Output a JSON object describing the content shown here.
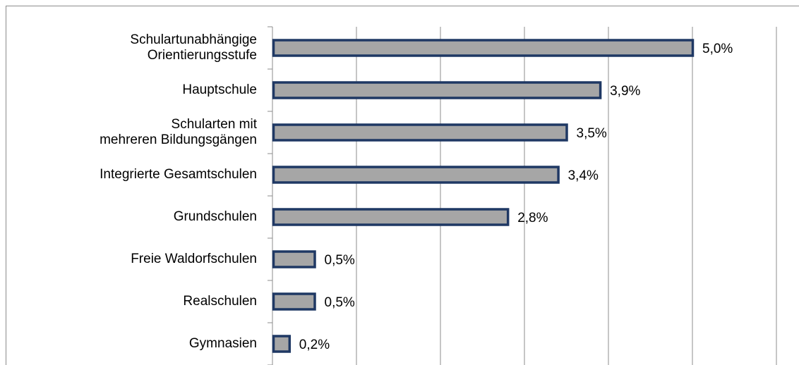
{
  "chart_data": {
    "type": "bar",
    "orientation": "horizontal",
    "categories": [
      "Schulartunabhängige\nOrientierungsstufe",
      "Hauptschule",
      "Schularten mit\nmehreren Bildungsgängen",
      "Integrierte Gesamtschulen",
      "Grundschulen",
      "Freie Waldorfschulen",
      "Realschulen",
      "Gymnasien"
    ],
    "values": [
      5.0,
      3.9,
      3.5,
      3.4,
      2.8,
      0.5,
      0.5,
      0.2
    ],
    "value_labels": [
      "5,0%",
      "3,9%",
      "3,5%",
      "3,4%",
      "2,8%",
      "0,5%",
      "0,5%",
      "0,2%"
    ],
    "color": "#a6a6a6",
    "edge_color": "#1f3864",
    "xlim": [
      0,
      6
    ],
    "xticks": [
      0,
      1,
      2,
      3,
      4,
      5,
      6
    ],
    "grid": true
  }
}
